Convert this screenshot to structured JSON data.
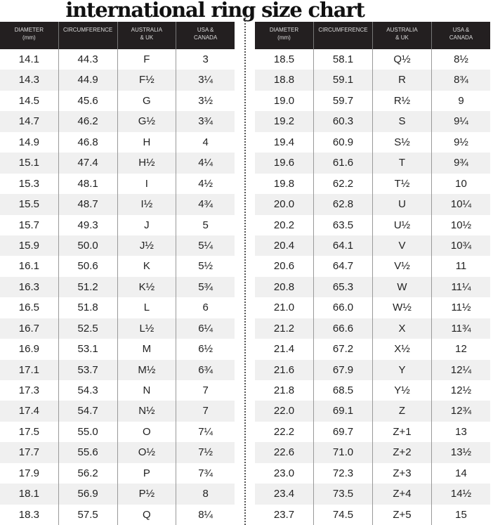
{
  "title": "international ring size chart",
  "headers": [
    "DIAMETER\n(mm)",
    "CIRCUMFERENCE",
    "AUSTRALIA\n& UK",
    "USA &\nCANADA"
  ],
  "left_rows": [
    [
      "14.1",
      "44.3",
      "F",
      "3"
    ],
    [
      "14.3",
      "44.9",
      "F½",
      "3¼"
    ],
    [
      "14.5",
      "45.6",
      "G",
      "3½"
    ],
    [
      "14.7",
      "46.2",
      "G½",
      "3¾"
    ],
    [
      "14.9",
      "46.8",
      "H",
      "4"
    ],
    [
      "15.1",
      "47.4",
      "H½",
      "4¼"
    ],
    [
      "15.3",
      "48.1",
      "I",
      "4½"
    ],
    [
      "15.5",
      "48.7",
      "I½",
      "4¾"
    ],
    [
      "15.7",
      "49.3",
      "J",
      "5"
    ],
    [
      "15.9",
      "50.0",
      "J½",
      "5¼"
    ],
    [
      "16.1",
      "50.6",
      "K",
      "5½"
    ],
    [
      "16.3",
      "51.2",
      "K½",
      "5¾"
    ],
    [
      "16.5",
      "51.8",
      "L",
      "6"
    ],
    [
      "16.7",
      "52.5",
      "L½",
      "6¼"
    ],
    [
      "16.9",
      "53.1",
      "M",
      "6½"
    ],
    [
      "17.1",
      "53.7",
      "M½",
      "6¾"
    ],
    [
      "17.3",
      "54.3",
      "N",
      "7"
    ],
    [
      "17.4",
      "54.7",
      "N½",
      "7"
    ],
    [
      "17.5",
      "55.0",
      "O",
      "7¼"
    ],
    [
      "17.7",
      "55.6",
      "O½",
      "7½"
    ],
    [
      "17.9",
      "56.2",
      "P",
      "7¾"
    ],
    [
      "18.1",
      "56.9",
      "P½",
      "8"
    ],
    [
      "18.3",
      "57.5",
      "Q",
      "8¼"
    ]
  ],
  "right_rows": [
    [
      "18.5",
      "58.1",
      "Q½",
      "8½"
    ],
    [
      "18.8",
      "59.1",
      "R",
      "8¾"
    ],
    [
      "19.0",
      "59.7",
      "R½",
      "9"
    ],
    [
      "19.2",
      "60.3",
      "S",
      "9¼"
    ],
    [
      "19.4",
      "60.9",
      "S½",
      "9½"
    ],
    [
      "19.6",
      "61.6",
      "T",
      "9¾"
    ],
    [
      "19.8",
      "62.2",
      "T½",
      "10"
    ],
    [
      "20.0",
      "62.8",
      "U",
      "10¼"
    ],
    [
      "20.2",
      "63.5",
      "U½",
      "10½"
    ],
    [
      "20.4",
      "64.1",
      "V",
      "10¾"
    ],
    [
      "20.6",
      "64.7",
      "V½",
      "11"
    ],
    [
      "20.8",
      "65.3",
      "W",
      "11¼"
    ],
    [
      "21.0",
      "66.0",
      "W½",
      "11½"
    ],
    [
      "21.2",
      "66.6",
      "X",
      "11¾"
    ],
    [
      "21.4",
      "67.2",
      "X½",
      "12"
    ],
    [
      "21.6",
      "67.9",
      "Y",
      "12¼"
    ],
    [
      "21.8",
      "68.5",
      "Y½",
      "12½"
    ],
    [
      "22.0",
      "69.1",
      "Z",
      "12¾"
    ],
    [
      "22.2",
      "69.7",
      "Z+1",
      "13"
    ],
    [
      "22.6",
      "71.0",
      "Z+2",
      "13½"
    ],
    [
      "23.0",
      "72.3",
      "Z+3",
      "14"
    ],
    [
      "23.4",
      "73.5",
      "Z+4",
      "14½"
    ],
    [
      "23.7",
      "74.5",
      "Z+5",
      "15"
    ]
  ]
}
